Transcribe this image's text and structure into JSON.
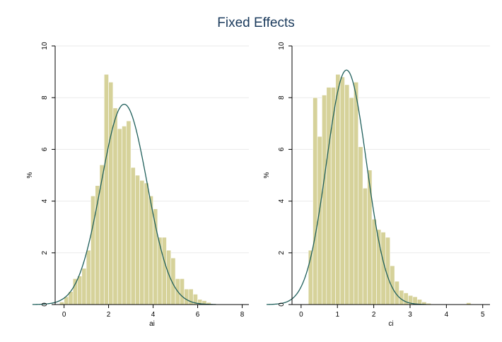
{
  "title": "Fixed Effects",
  "colors": {
    "bar_fill": "#d6d29a",
    "bar_stroke": "#ffffff",
    "curve": "#1f5f5b",
    "grid": "#eaeaea",
    "axis": "#000000",
    "title": "#1a3a5c"
  },
  "chart_data": [
    {
      "type": "bar",
      "subtype": "histogram with normal density overlay",
      "xlabel": "ai",
      "ylabel": "%",
      "xlim": [
        -0.4,
        8.3
      ],
      "ylim": [
        0,
        10
      ],
      "x_ticks": [
        0,
        2,
        4,
        6,
        8
      ],
      "y_ticks": [
        0,
        2,
        4,
        6,
        8,
        10
      ],
      "y_tick_rotation": "vertical",
      "grid": "horizontal",
      "bin_width": 0.2,
      "bins": [
        {
          "x0": -0.2,
          "v": 0.1
        },
        {
          "x0": 0.0,
          "v": 0.3
        },
        {
          "x0": 0.2,
          "v": 0.5
        },
        {
          "x0": 0.4,
          "v": 1.0
        },
        {
          "x0": 0.6,
          "v": 1.1
        },
        {
          "x0": 0.8,
          "v": 1.4
        },
        {
          "x0": 1.0,
          "v": 2.1
        },
        {
          "x0": 1.2,
          "v": 4.2
        },
        {
          "x0": 1.4,
          "v": 4.6
        },
        {
          "x0": 1.6,
          "v": 5.4
        },
        {
          "x0": 1.8,
          "v": 8.9
        },
        {
          "x0": 2.0,
          "v": 8.6
        },
        {
          "x0": 2.2,
          "v": 7.6
        },
        {
          "x0": 2.4,
          "v": 6.8
        },
        {
          "x0": 2.6,
          "v": 6.9
        },
        {
          "x0": 2.8,
          "v": 7.1
        },
        {
          "x0": 3.0,
          "v": 5.3
        },
        {
          "x0": 3.2,
          "v": 5.0
        },
        {
          "x0": 3.4,
          "v": 4.8
        },
        {
          "x0": 3.6,
          "v": 4.7
        },
        {
          "x0": 3.8,
          "v": 4.2
        },
        {
          "x0": 4.0,
          "v": 3.7
        },
        {
          "x0": 4.2,
          "v": 2.6
        },
        {
          "x0": 4.4,
          "v": 2.6
        },
        {
          "x0": 4.6,
          "v": 2.1
        },
        {
          "x0": 4.8,
          "v": 1.8
        },
        {
          "x0": 5.0,
          "v": 1.0
        },
        {
          "x0": 5.2,
          "v": 1.0
        },
        {
          "x0": 5.4,
          "v": 0.6
        },
        {
          "x0": 5.6,
          "v": 0.6
        },
        {
          "x0": 5.8,
          "v": 0.4
        },
        {
          "x0": 6.0,
          "v": 0.2
        },
        {
          "x0": 6.2,
          "v": 0.15
        },
        {
          "x0": 6.4,
          "v": 0.08
        }
      ],
      "normal_curve": {
        "mean": 2.7,
        "sd": 1.03
      }
    },
    {
      "type": "bar",
      "subtype": "histogram with normal density overlay",
      "xlabel": "ci",
      "ylabel": "%",
      "xlim": [
        -0.25,
        5.2
      ],
      "ylim": [
        0,
        10
      ],
      "x_ticks": [
        0,
        1,
        2,
        3,
        4,
        5
      ],
      "y_ticks": [
        0,
        2,
        4,
        6,
        8,
        10
      ],
      "y_tick_rotation": "vertical",
      "grid": "horizontal",
      "bin_width": 0.125,
      "bins": [
        {
          "x0": 0.2,
          "v": 2.1
        },
        {
          "x0": 0.325,
          "v": 8.0
        },
        {
          "x0": 0.45,
          "v": 6.5
        },
        {
          "x0": 0.575,
          "v": 8.1
        },
        {
          "x0": 0.7,
          "v": 8.4
        },
        {
          "x0": 0.825,
          "v": 8.4
        },
        {
          "x0": 0.95,
          "v": 8.9
        },
        {
          "x0": 1.075,
          "v": 8.8
        },
        {
          "x0": 1.2,
          "v": 8.5
        },
        {
          "x0": 1.325,
          "v": 8.0
        },
        {
          "x0": 1.45,
          "v": 8.6
        },
        {
          "x0": 1.575,
          "v": 6.1
        },
        {
          "x0": 1.7,
          "v": 4.5
        },
        {
          "x0": 1.825,
          "v": 5.2
        },
        {
          "x0": 1.95,
          "v": 3.3
        },
        {
          "x0": 2.075,
          "v": 2.9
        },
        {
          "x0": 2.2,
          "v": 2.8
        },
        {
          "x0": 2.325,
          "v": 2.6
        },
        {
          "x0": 2.45,
          "v": 1.5
        },
        {
          "x0": 2.575,
          "v": 0.9
        },
        {
          "x0": 2.7,
          "v": 0.55
        },
        {
          "x0": 2.825,
          "v": 0.45
        },
        {
          "x0": 2.95,
          "v": 0.35
        },
        {
          "x0": 3.075,
          "v": 0.3
        },
        {
          "x0": 3.2,
          "v": 0.2
        },
        {
          "x0": 3.325,
          "v": 0.1
        },
        {
          "x0": 3.45,
          "v": 0.05
        },
        {
          "x0": 4.55,
          "v": 0.07
        }
      ],
      "normal_curve": {
        "mean": 1.25,
        "sd": 0.55
      }
    }
  ]
}
